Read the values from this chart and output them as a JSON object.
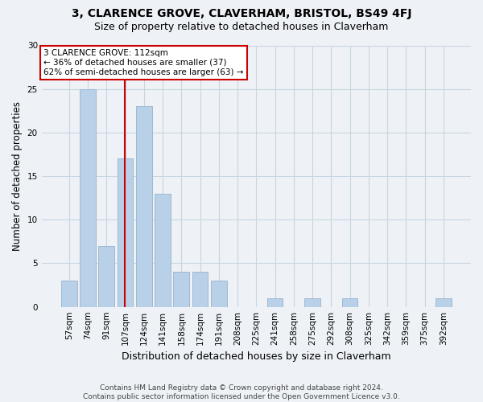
{
  "title": "3, CLARENCE GROVE, CLAVERHAM, BRISTOL, BS49 4FJ",
  "subtitle": "Size of property relative to detached houses in Claverham",
  "xlabel": "Distribution of detached houses by size in Claverham",
  "ylabel": "Number of detached properties",
  "footnote1": "Contains HM Land Registry data © Crown copyright and database right 2024.",
  "footnote2": "Contains public sector information licensed under the Open Government Licence v3.0.",
  "categories": [
    "57sqm",
    "74sqm",
    "91sqm",
    "107sqm",
    "124sqm",
    "141sqm",
    "158sqm",
    "174sqm",
    "191sqm",
    "208sqm",
    "225sqm",
    "241sqm",
    "258sqm",
    "275sqm",
    "292sqm",
    "308sqm",
    "325sqm",
    "342sqm",
    "359sqm",
    "375sqm",
    "392sqm"
  ],
  "values": [
    3,
    25,
    7,
    17,
    23,
    13,
    4,
    4,
    3,
    0,
    0,
    1,
    0,
    1,
    0,
    1,
    0,
    0,
    0,
    0,
    1
  ],
  "bar_color": "#b8d0e8",
  "bar_edge_color": "#a0b8d0",
  "property_label": "3 CLARENCE GROVE: 112sqm",
  "annotation_line1": "← 36% of detached houses are smaller (37)",
  "annotation_line2": "62% of semi-detached houses are larger (63) →",
  "vline_color": "#cc0000",
  "vline_position": 2.97,
  "ylim": [
    0,
    30
  ],
  "background_color": "#eef2f7",
  "grid_color": "#c8d4e0",
  "title_fontsize": 10,
  "subtitle_fontsize": 9,
  "ylabel_fontsize": 8.5,
  "xlabel_fontsize": 9,
  "tick_fontsize": 7.5,
  "footnote_fontsize": 6.5
}
